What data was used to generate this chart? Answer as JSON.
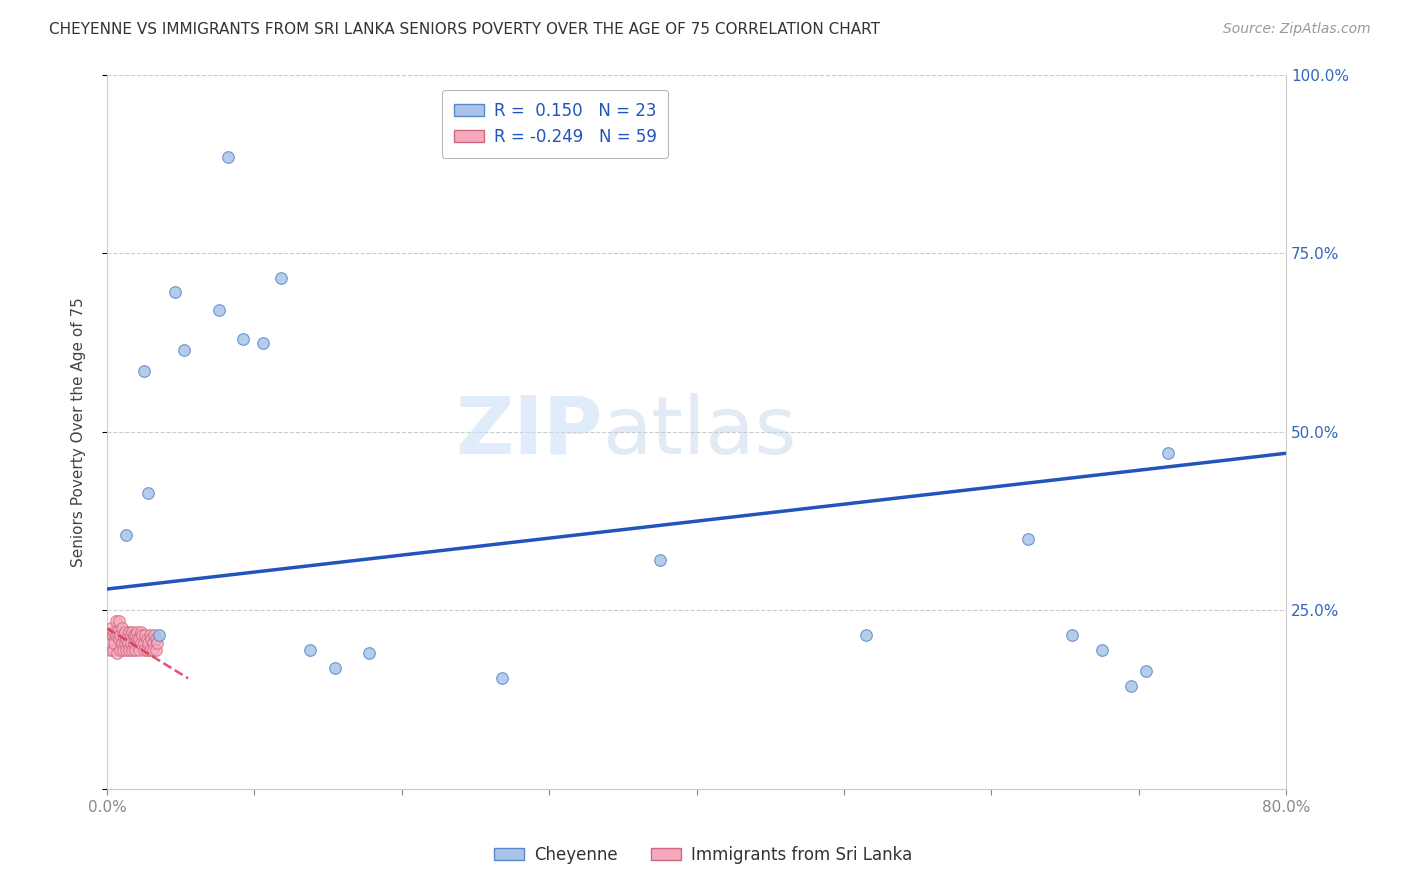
{
  "title": "CHEYENNE VS IMMIGRANTS FROM SRI LANKA SENIORS POVERTY OVER THE AGE OF 75 CORRELATION CHART",
  "source": "Source: ZipAtlas.com",
  "ylabel": "Seniors Poverty Over the Age of 75",
  "xlim": [
    0.0,
    0.8
  ],
  "ylim": [
    0.0,
    1.0
  ],
  "xtick_positions": [
    0.0,
    0.1,
    0.2,
    0.3,
    0.4,
    0.5,
    0.6,
    0.7,
    0.8
  ],
  "xtick_labels": [
    "0.0%",
    "",
    "",
    "",
    "",
    "",
    "",
    "",
    "80.0%"
  ],
  "ytick_positions": [
    0.0,
    0.25,
    0.5,
    0.75,
    1.0
  ],
  "ytick_labels": [
    "",
    "25.0%",
    "50.0%",
    "75.0%",
    "100.0%"
  ],
  "cheyenne_color": "#aac4e8",
  "cheyenne_edge": "#5588cc",
  "sri_lanka_color": "#f4aabc",
  "sri_lanka_edge": "#d06680",
  "trend_cheyenne_color": "#2255bb",
  "trend_sri_lanka_color": "#dd3355",
  "legend_line1": "R =  0.150   N = 23",
  "legend_line2": "R = -0.249   N = 59",
  "cheyenne_x": [
    0.013,
    0.025,
    0.028,
    0.035,
    0.046,
    0.052,
    0.076,
    0.082,
    0.092,
    0.106,
    0.118,
    0.138,
    0.155,
    0.178,
    0.268,
    0.375,
    0.515,
    0.625,
    0.655,
    0.675,
    0.695,
    0.705,
    0.72
  ],
  "cheyenne_y": [
    0.355,
    0.585,
    0.415,
    0.215,
    0.695,
    0.615,
    0.67,
    0.885,
    0.63,
    0.625,
    0.715,
    0.195,
    0.17,
    0.19,
    0.155,
    0.32,
    0.215,
    0.35,
    0.215,
    0.195,
    0.145,
    0.165,
    0.47
  ],
  "sri_lanka_x": [
    0.002,
    0.002,
    0.003,
    0.003,
    0.004,
    0.004,
    0.005,
    0.005,
    0.006,
    0.006,
    0.007,
    0.007,
    0.008,
    0.008,
    0.009,
    0.009,
    0.01,
    0.01,
    0.011,
    0.011,
    0.012,
    0.012,
    0.013,
    0.013,
    0.014,
    0.014,
    0.015,
    0.015,
    0.016,
    0.016,
    0.017,
    0.017,
    0.018,
    0.018,
    0.019,
    0.019,
    0.02,
    0.02,
    0.021,
    0.022,
    0.022,
    0.023,
    0.023,
    0.024,
    0.025,
    0.025,
    0.026,
    0.027,
    0.027,
    0.028,
    0.029,
    0.029,
    0.03,
    0.031,
    0.031,
    0.032,
    0.033,
    0.033,
    0.034
  ],
  "sri_lanka_y": [
    0.195,
    0.215,
    0.205,
    0.225,
    0.195,
    0.215,
    0.22,
    0.205,
    0.215,
    0.235,
    0.19,
    0.22,
    0.21,
    0.235,
    0.215,
    0.195,
    0.225,
    0.205,
    0.215,
    0.195,
    0.22,
    0.205,
    0.21,
    0.195,
    0.215,
    0.205,
    0.22,
    0.195,
    0.215,
    0.205,
    0.22,
    0.195,
    0.215,
    0.205,
    0.215,
    0.195,
    0.22,
    0.21,
    0.205,
    0.21,
    0.195,
    0.22,
    0.205,
    0.215,
    0.205,
    0.195,
    0.215,
    0.21,
    0.195,
    0.205,
    0.215,
    0.195,
    0.21,
    0.205,
    0.195,
    0.215,
    0.21,
    0.195,
    0.205
  ],
  "trend_cheyenne_x0": 0.0,
  "trend_cheyenne_y0": 0.28,
  "trend_cheyenne_x1": 0.8,
  "trend_cheyenne_y1": 0.47,
  "trend_sri_lanka_x0": 0.0,
  "trend_sri_lanka_y0": 0.225,
  "trend_sri_lanka_x1": 0.055,
  "trend_sri_lanka_y1": 0.155,
  "background_color": "#ffffff",
  "grid_color": "#cccccc",
  "watermark_zip": "ZIP",
  "watermark_atlas": "atlas",
  "marker_size": 70
}
